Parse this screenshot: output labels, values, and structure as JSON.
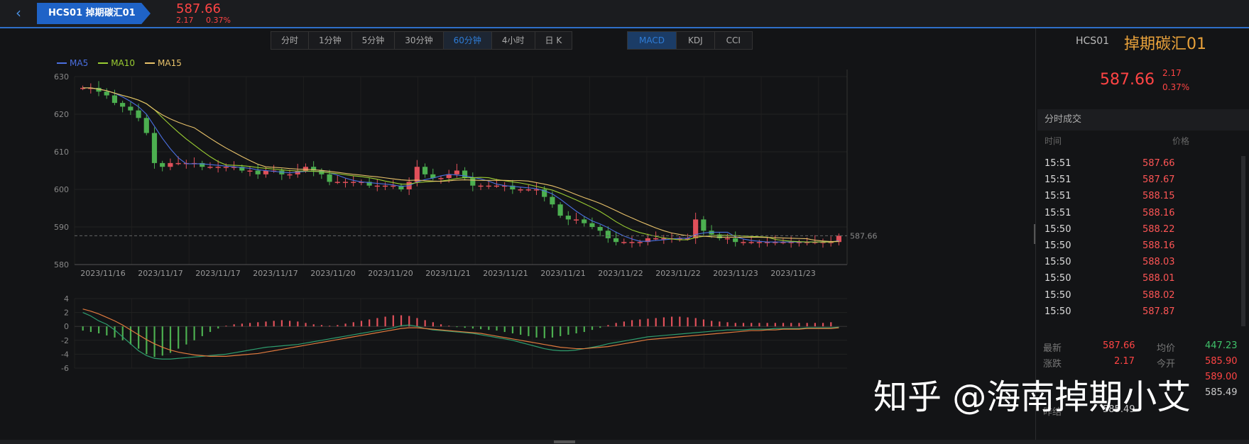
{
  "header": {
    "back_icon": "chevron-left-icon",
    "tab_label": "HCS01 掉期碳汇01",
    "price": "587.66",
    "change": "2.17",
    "change_pct": "0.37%"
  },
  "timeframes": [
    "分时",
    "1分钟",
    "5分钟",
    "30分钟",
    "60分钟",
    "4小时",
    "日 K"
  ],
  "active_timeframe": "60分钟",
  "indicators": [
    "MACD",
    "KDJ",
    "CCI"
  ],
  "active_indicator": "MACD",
  "legend": [
    {
      "name": "MA5",
      "color": "#4a6fe0"
    },
    {
      "name": "MA10",
      "color": "#9acd32"
    },
    {
      "name": "MA15",
      "color": "#e8c26a"
    }
  ],
  "price_axis": [
    "630",
    "620",
    "610",
    "600",
    "590",
    "580"
  ],
  "macd_axis": [
    "4",
    "2",
    "0",
    "-2",
    "-4",
    "-6"
  ],
  "date_labels": [
    "2023/11/16",
    "2023/11/17",
    "2023/11/17",
    "2023/11/17",
    "2023/11/20",
    "2023/11/20",
    "2023/11/21",
    "2023/11/21",
    "2023/11/21",
    "2023/11/22",
    "2023/11/22",
    "2023/11/23",
    "2023/11/23"
  ],
  "last_price_tag": "587.66",
  "colors": {
    "up": "#e0505a",
    "down": "#4caf50",
    "accent": "#1f63c7"
  },
  "chart_data": {
    "type": "candlestick",
    "ylim": [
      580,
      630
    ],
    "closes": [
      627,
      627,
      626,
      625,
      623,
      622,
      621,
      619,
      615,
      607,
      606,
      607,
      607,
      607,
      607,
      606,
      606,
      606,
      606,
      606,
      605,
      605,
      604,
      605,
      605,
      604,
      604,
      605,
      606,
      605,
      604,
      602,
      602,
      602,
      602,
      602,
      601,
      601,
      601,
      601,
      600,
      602,
      606,
      604,
      603,
      603,
      604,
      605,
      603,
      601,
      601,
      601,
      601,
      601,
      600,
      600,
      600,
      600,
      598,
      596,
      593,
      592,
      592,
      591,
      590,
      589,
      587,
      586,
      586,
      586,
      586,
      587,
      587,
      587,
      587,
      587,
      587,
      592,
      589,
      588,
      587,
      587,
      586,
      586,
      586,
      586,
      586,
      586,
      586,
      586,
      586,
      586,
      586,
      586,
      586,
      587.66
    ],
    "macd_hist": [
      -0.6,
      -0.8,
      -1.0,
      -1.3,
      -1.6,
      -2.0,
      -2.6,
      -3.2,
      -4.0,
      -4.4,
      -4.2,
      -3.8,
      -3.2,
      -2.6,
      -2.0,
      -1.4,
      -0.8,
      -0.3,
      0.1,
      0.3,
      0.4,
      0.5,
      0.6,
      0.7,
      0.8,
      0.9,
      0.8,
      0.7,
      0.5,
      0.3,
      0.2,
      0.1,
      0.2,
      0.4,
      0.6,
      0.8,
      1.0,
      1.2,
      1.4,
      1.6,
      1.6,
      1.5,
      1.2,
      0.9,
      0.6,
      0.3,
      0.1,
      -0.1,
      -0.2,
      -0.3,
      -0.4,
      -0.5,
      -0.6,
      -0.8,
      -1.0,
      -1.2,
      -1.4,
      -1.6,
      -1.7,
      -1.6,
      -1.4,
      -1.2,
      -1.0,
      -0.8,
      -0.5,
      -0.2,
      0.2,
      0.5,
      0.7,
      0.9,
      1.0,
      1.1,
      1.2,
      1.3,
      1.4,
      1.4,
      1.3,
      1.2,
      1.0,
      0.8,
      0.7,
      0.6,
      0.5,
      0.5,
      0.5,
      0.5,
      0.5,
      0.5,
      0.5,
      0.5,
      0.5,
      0.5,
      0.5,
      0.5,
      0.6
    ],
    "dif": [
      2,
      1.5,
      0.8,
      0.3,
      -0.5,
      -1.5,
      -2.5,
      -3.5,
      -4.2,
      -4.6,
      -4.7,
      -4.7,
      -4.6,
      -4.5,
      -4.4,
      -4.3,
      -4.2,
      -4.1,
      -4.0,
      -3.8,
      -3.6,
      -3.4,
      -3.2,
      -3.0,
      -2.9,
      -2.8,
      -2.7,
      -2.6,
      -2.4,
      -2.2,
      -2.0,
      -1.8,
      -1.6,
      -1.4,
      -1.2,
      -1.0,
      -0.8,
      -0.6,
      -0.4,
      -0.2,
      0.1,
      0.2,
      0.0,
      -0.3,
      -0.5,
      -0.6,
      -0.7,
      -0.8,
      -0.9,
      -1.0,
      -1.2,
      -1.4,
      -1.6,
      -1.8,
      -2.0,
      -2.3,
      -2.6,
      -2.9,
      -3.2,
      -3.4,
      -3.5,
      -3.5,
      -3.4,
      -3.2,
      -3.0,
      -2.8,
      -2.5,
      -2.3,
      -2.1,
      -1.9,
      -1.7,
      -1.5,
      -1.4,
      -1.3,
      -1.2,
      -1.1,
      -1.0,
      -0.9,
      -0.8,
      -0.7,
      -0.6,
      -0.5,
      -0.5,
      -0.5,
      -0.4,
      -0.4,
      -0.4,
      -0.3,
      -0.3,
      -0.3,
      -0.3,
      -0.2,
      -0.2,
      -0.2,
      -0.2,
      -0.1
    ],
    "dea": [
      2.5,
      2.2,
      1.8,
      1.3,
      0.8,
      0.2,
      -0.5,
      -1.2,
      -1.9,
      -2.5,
      -3.0,
      -3.4,
      -3.7,
      -3.9,
      -4.1,
      -4.2,
      -4.3,
      -4.3,
      -4.3,
      -4.2,
      -4.1,
      -4.0,
      -3.9,
      -3.7,
      -3.5,
      -3.3,
      -3.1,
      -2.9,
      -2.7,
      -2.5,
      -2.3,
      -2.1,
      -1.9,
      -1.7,
      -1.5,
      -1.3,
      -1.1,
      -0.9,
      -0.7,
      -0.5,
      -0.3,
      -0.2,
      -0.2,
      -0.3,
      -0.4,
      -0.5,
      -0.6,
      -0.7,
      -0.8,
      -0.9,
      -1.0,
      -1.2,
      -1.4,
      -1.6,
      -1.8,
      -2.0,
      -2.2,
      -2.4,
      -2.6,
      -2.8,
      -3.0,
      -3.1,
      -3.2,
      -3.2,
      -3.1,
      -3.0,
      -2.9,
      -2.7,
      -2.5,
      -2.3,
      -2.1,
      -1.9,
      -1.8,
      -1.7,
      -1.6,
      -1.5,
      -1.4,
      -1.3,
      -1.2,
      -1.1,
      -1.0,
      -0.9,
      -0.8,
      -0.7,
      -0.6,
      -0.6,
      -0.5,
      -0.5,
      -0.4,
      -0.4,
      -0.4,
      -0.3,
      -0.3,
      -0.3,
      -0.3,
      -0.2
    ]
  },
  "right_panel": {
    "code": "HCS01",
    "name": "掉期碳汇01",
    "price": "587.66",
    "change": "2.17",
    "change_pct": "0.37%",
    "section_title": "分时成交",
    "col_time": "时间",
    "col_price": "价格",
    "trades": [
      {
        "time": "15:51",
        "price": "587.66"
      },
      {
        "time": "15:51",
        "price": "587.67"
      },
      {
        "time": "15:51",
        "price": "588.15"
      },
      {
        "time": "15:51",
        "price": "588.16"
      },
      {
        "time": "15:50",
        "price": "588.22"
      },
      {
        "time": "15:50",
        "price": "588.16"
      },
      {
        "time": "15:50",
        "price": "588.03"
      },
      {
        "time": "15:50",
        "price": "588.01"
      },
      {
        "time": "15:50",
        "price": "588.02"
      },
      {
        "time": "15:50",
        "price": "587.87"
      }
    ],
    "stats": {
      "latest_label": "最新",
      "latest": "587.66",
      "avg_label": "均价",
      "avg": "447.23",
      "change_label": "涨跌",
      "change": "2.17",
      "open_label": "今开",
      "open": "585.90",
      "high": "589.00",
      "low": "585.49",
      "prev_label": "昨结",
      "prev": "585.49"
    }
  },
  "watermark": "知乎 @海南掉期小艾"
}
